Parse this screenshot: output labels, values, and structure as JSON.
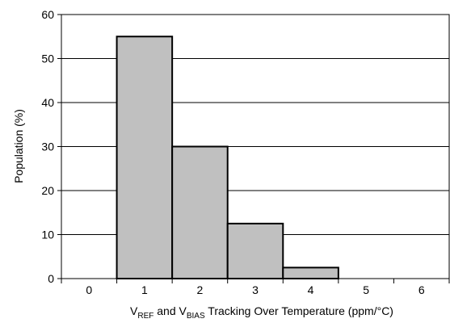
{
  "chart_data": {
    "type": "bar",
    "categories": [
      "0",
      "1",
      "2",
      "3",
      "4",
      "5",
      "6"
    ],
    "values": [
      0,
      55,
      30,
      12.5,
      2.5,
      0,
      0
    ],
    "xlabel": {
      "v1": "V",
      "sub1": "REF",
      "mid": " and V",
      "sub2": "BIAS",
      "tail": " Tracking Over Temperature (ppm/°C)"
    },
    "ylabel": "Population (%)",
    "ylim": [
      0,
      60
    ],
    "yticks": [
      0,
      10,
      20,
      30,
      40,
      50,
      60
    ],
    "grid": true,
    "legend": "none",
    "bar_fill": "#c0c0c0",
    "bar_stroke": "#000000"
  }
}
